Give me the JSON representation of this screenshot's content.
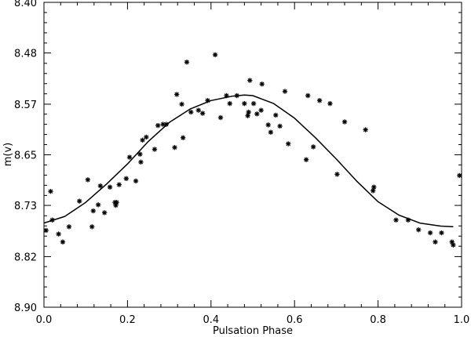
{
  "chart_data": {
    "type": "scatter",
    "title": "",
    "xlabel": "Pulsation Phase",
    "ylabel": "m(v)",
    "xlim": [
      0.0,
      1.0
    ],
    "ylim": [
      8.4,
      8.9
    ],
    "y_inverted": true,
    "x_ticks": [
      "0.0",
      "0.2",
      "0.4",
      "0.6",
      "0.8",
      "1.0"
    ],
    "x_tick_values": [
      0.0,
      0.2,
      0.4,
      0.6,
      0.8,
      1.0
    ],
    "y_ticks": [
      "8.40",
      "8.48",
      "8.57",
      "8.65",
      "8.73",
      "8.82",
      "8.90"
    ],
    "y_tick_values": [
      8.4,
      8.483,
      8.567,
      8.65,
      8.733,
      8.817,
      8.9
    ],
    "grid": false,
    "legend": "none",
    "marker": "asterisk",
    "series": [
      {
        "style": "markers",
        "points": [
          [
            0.005,
            8.774
          ],
          [
            0.016,
            8.71
          ],
          [
            0.02,
            8.757
          ],
          [
            0.035,
            8.78
          ],
          [
            0.045,
            8.793
          ],
          [
            0.06,
            8.768
          ],
          [
            0.085,
            8.726
          ],
          [
            0.105,
            8.691
          ],
          [
            0.115,
            8.768
          ],
          [
            0.118,
            8.742
          ],
          [
            0.13,
            8.732
          ],
          [
            0.135,
            8.701
          ],
          [
            0.145,
            8.745
          ],
          [
            0.158,
            8.703
          ],
          [
            0.17,
            8.728
          ],
          [
            0.172,
            8.733
          ],
          [
            0.174,
            8.728
          ],
          [
            0.18,
            8.699
          ],
          [
            0.197,
            8.689
          ],
          [
            0.205,
            8.654
          ],
          [
            0.22,
            8.693
          ],
          [
            0.23,
            8.649
          ],
          [
            0.232,
            8.662
          ],
          [
            0.236,
            8.626
          ],
          [
            0.245,
            8.621
          ],
          [
            0.265,
            8.641
          ],
          [
            0.273,
            8.602
          ],
          [
            0.285,
            8.6
          ],
          [
            0.293,
            8.6
          ],
          [
            0.313,
            8.638
          ],
          [
            0.318,
            8.551
          ],
          [
            0.33,
            8.567
          ],
          [
            0.333,
            8.622
          ],
          [
            0.342,
            8.498
          ],
          [
            0.352,
            8.58
          ],
          [
            0.37,
            8.577
          ],
          [
            0.38,
            8.582
          ],
          [
            0.392,
            8.561
          ],
          [
            0.41,
            8.486
          ],
          [
            0.423,
            8.589
          ],
          [
            0.437,
            8.553
          ],
          [
            0.445,
            8.566
          ],
          [
            0.462,
            8.553
          ],
          [
            0.48,
            8.566
          ],
          [
            0.488,
            8.586
          ],
          [
            0.49,
            8.58
          ],
          [
            0.493,
            8.528
          ],
          [
            0.502,
            8.566
          ],
          [
            0.51,
            8.583
          ],
          [
            0.52,
            8.577
          ],
          [
            0.522,
            8.534
          ],
          [
            0.537,
            8.601
          ],
          [
            0.543,
            8.613
          ],
          [
            0.555,
            8.585
          ],
          [
            0.565,
            8.603
          ],
          [
            0.577,
            8.546
          ],
          [
            0.585,
            8.632
          ],
          [
            0.628,
            8.658
          ],
          [
            0.632,
            8.553
          ],
          [
            0.645,
            8.637
          ],
          [
            0.66,
            8.561
          ],
          [
            0.685,
            8.566
          ],
          [
            0.702,
            8.682
          ],
          [
            0.72,
            8.596
          ],
          [
            0.77,
            8.609
          ],
          [
            0.788,
            8.709
          ],
          [
            0.79,
            8.703
          ],
          [
            0.843,
            8.757
          ],
          [
            0.872,
            8.757
          ],
          [
            0.897,
            8.773
          ],
          [
            0.925,
            8.778
          ],
          [
            0.937,
            8.793
          ],
          [
            0.952,
            8.778
          ],
          [
            0.977,
            8.793
          ],
          [
            0.98,
            8.798
          ],
          [
            0.995,
            8.684
          ]
        ]
      },
      {
        "style": "line",
        "points": [
          [
            0.0,
            8.762
          ],
          [
            0.05,
            8.751
          ],
          [
            0.1,
            8.728
          ],
          [
            0.15,
            8.698
          ],
          [
            0.2,
            8.665
          ],
          [
            0.25,
            8.628
          ],
          [
            0.3,
            8.597
          ],
          [
            0.35,
            8.575
          ],
          [
            0.4,
            8.561
          ],
          [
            0.45,
            8.554
          ],
          [
            0.48,
            8.552
          ],
          [
            0.5,
            8.553
          ],
          [
            0.55,
            8.566
          ],
          [
            0.6,
            8.59
          ],
          [
            0.65,
            8.622
          ],
          [
            0.7,
            8.657
          ],
          [
            0.75,
            8.694
          ],
          [
            0.8,
            8.727
          ],
          [
            0.85,
            8.749
          ],
          [
            0.9,
            8.762
          ],
          [
            0.95,
            8.767
          ],
          [
            0.98,
            8.768
          ]
        ]
      }
    ]
  }
}
